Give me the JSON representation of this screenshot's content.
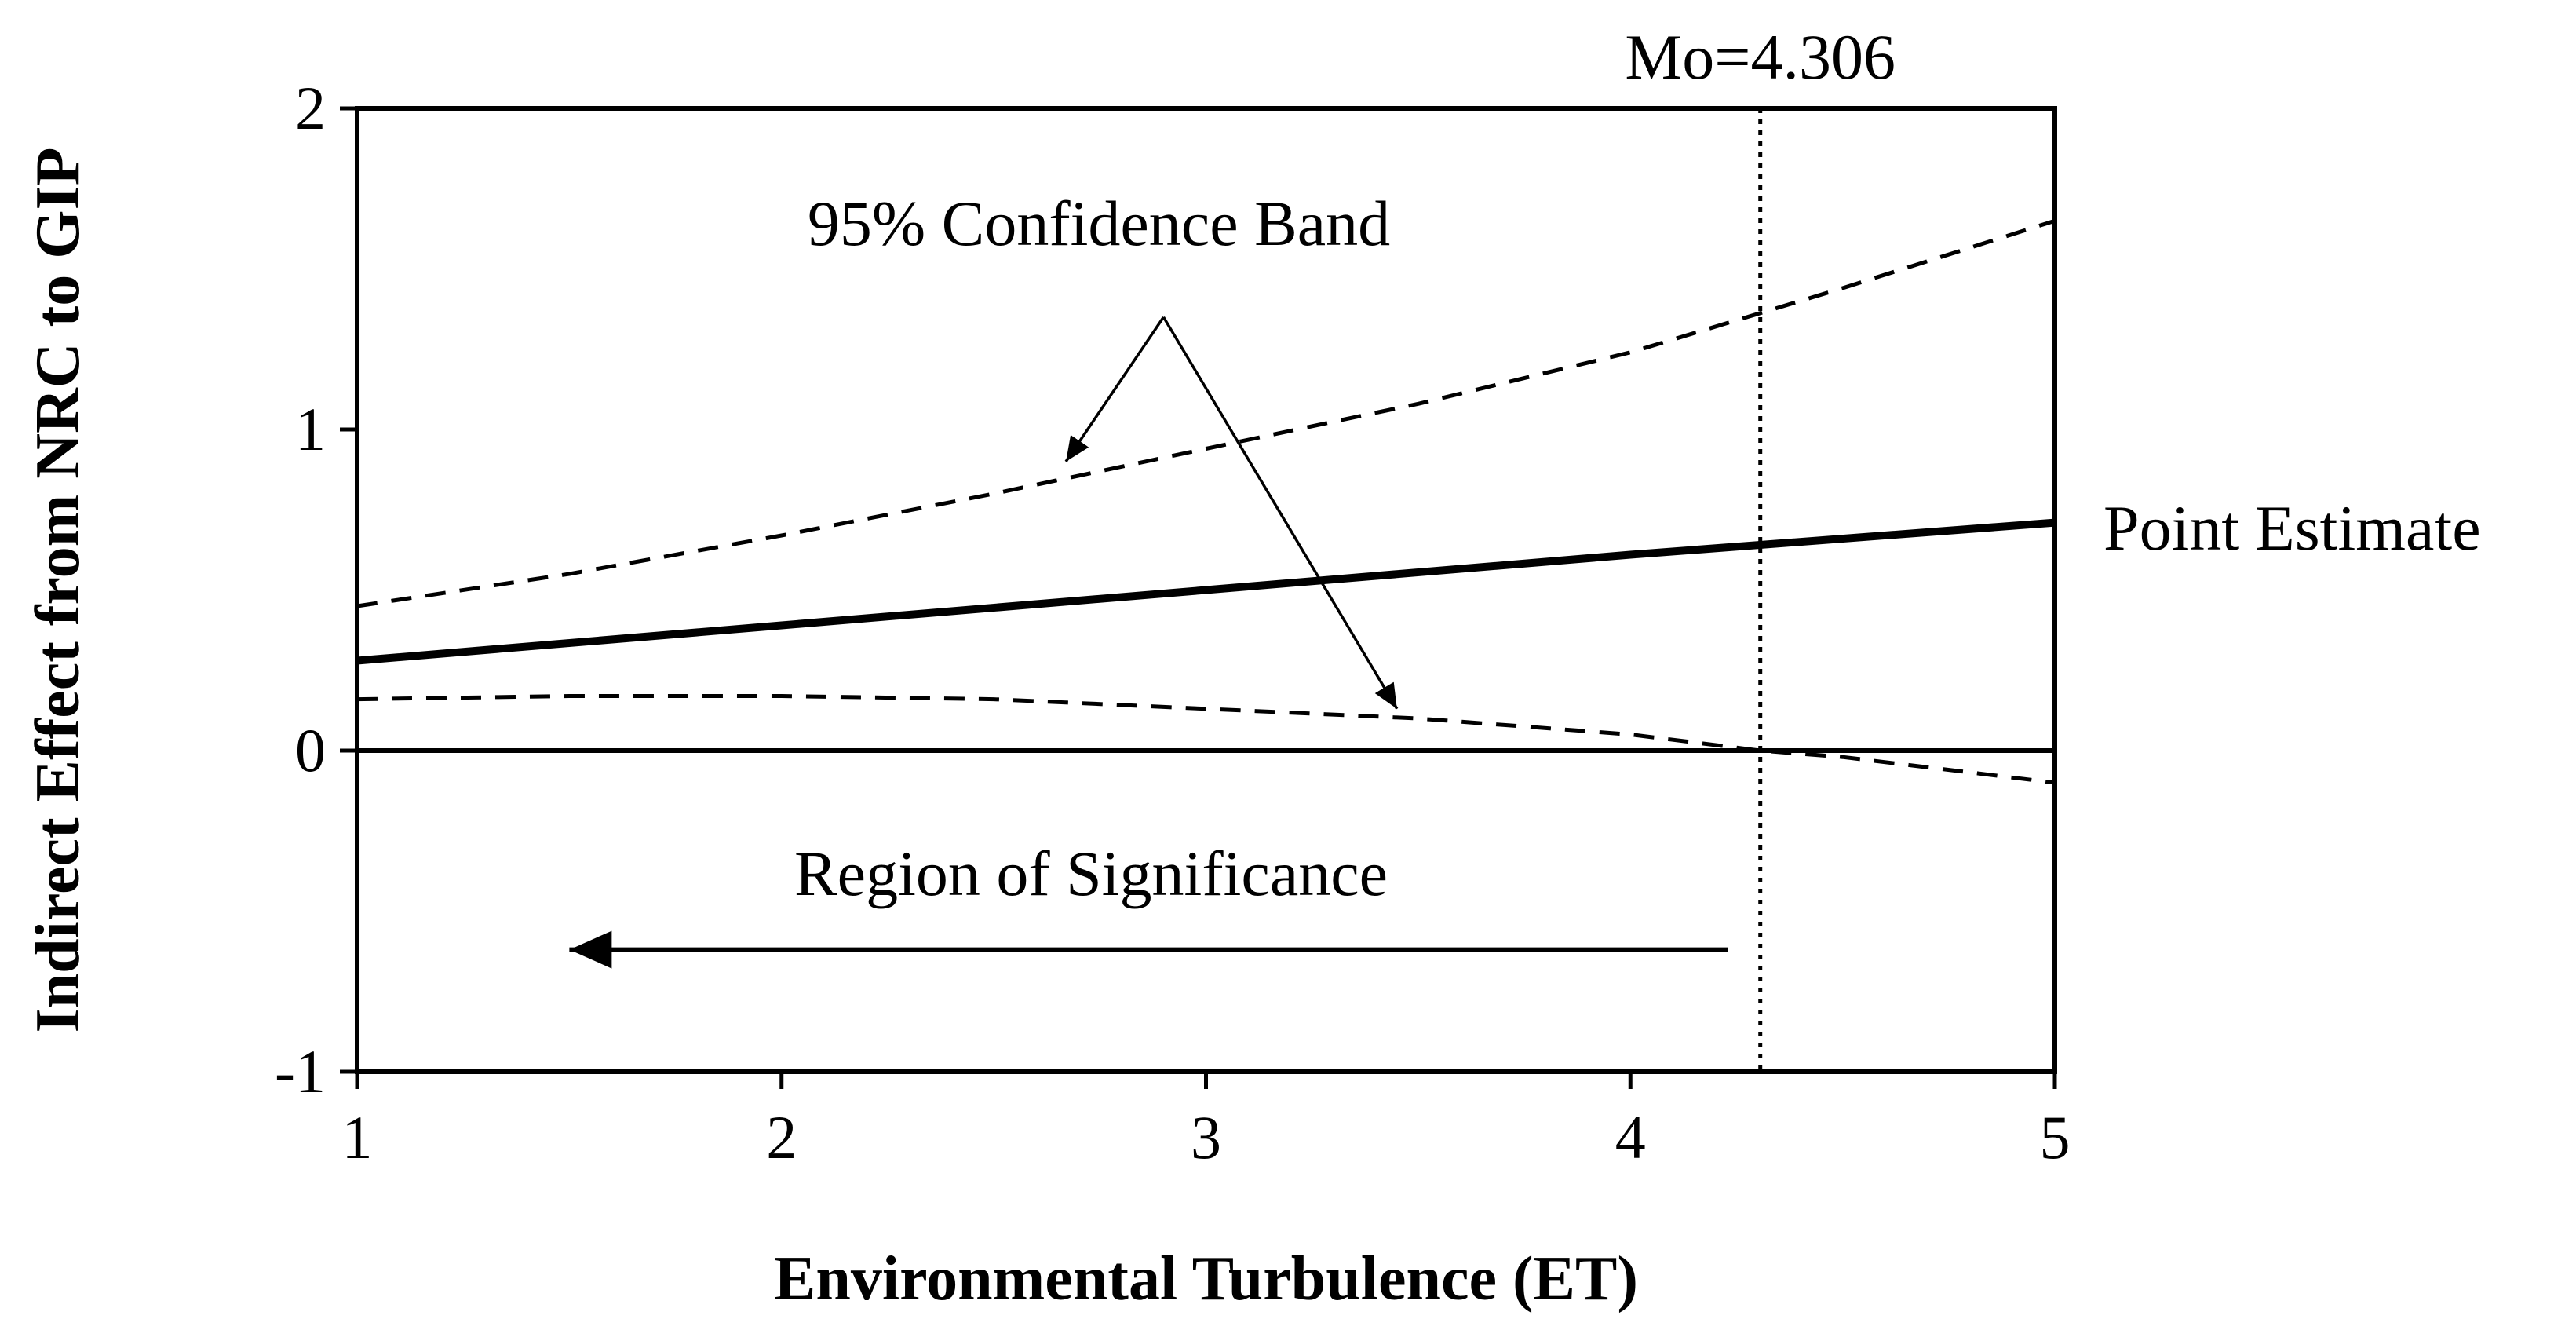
{
  "chart_data": {
    "type": "line",
    "title": "",
    "xlabel": "Environmental Turbulence (ET)",
    "ylabel": "Indirect Effect from NRC to GIP",
    "xlim": [
      1,
      5
    ],
    "ylim": [
      -1,
      2
    ],
    "x_ticks": [
      1,
      2,
      3,
      4,
      5
    ],
    "y_ticks": [
      -1,
      0,
      1,
      2
    ],
    "series": [
      {
        "name": "Point Estimate",
        "style": "solid",
        "x": [
          1,
          2,
          3,
          4,
          5
        ],
        "values": [
          0.28,
          0.39,
          0.5,
          0.61,
          0.71
        ]
      },
      {
        "name": "95% Confidence Band (upper)",
        "style": "dashed",
        "x": [
          1,
          1.5,
          2,
          2.5,
          3,
          3.5,
          4,
          4.5,
          5
        ],
        "values": [
          0.45,
          0.55,
          0.67,
          0.8,
          0.94,
          1.08,
          1.24,
          1.44,
          1.65
        ]
      },
      {
        "name": "95% Confidence Band (lower)",
        "style": "dashed",
        "x": [
          1,
          1.5,
          2,
          2.5,
          3,
          3.5,
          4,
          4.306,
          4.5,
          5
        ],
        "values": [
          0.16,
          0.17,
          0.17,
          0.16,
          0.13,
          0.1,
          0.05,
          0.0,
          -0.02,
          -0.1
        ]
      }
    ],
    "reference_lines": [
      {
        "axis": "y",
        "value": 0,
        "style": "solid"
      },
      {
        "axis": "x",
        "value": 4.306,
        "style": "dotted",
        "label": "Mo=4.306"
      }
    ],
    "annotations": {
      "confidence_band": "95% Confidence Band",
      "point_estimate": "Point Estimate",
      "region": "Region of Significance",
      "moderator": "Mo=4.306"
    },
    "arrows": [
      {
        "name": "band-arrow-upper",
        "from": [
          2.9,
          1.35
        ],
        "to": [
          2.67,
          0.9
        ]
      },
      {
        "name": "band-arrow-lower",
        "from": [
          2.9,
          1.35
        ],
        "to": [
          3.45,
          0.13
        ]
      },
      {
        "name": "region-arrow",
        "from": [
          4.23,
          -0.62
        ],
        "to": [
          1.5,
          -0.62
        ]
      }
    ]
  }
}
